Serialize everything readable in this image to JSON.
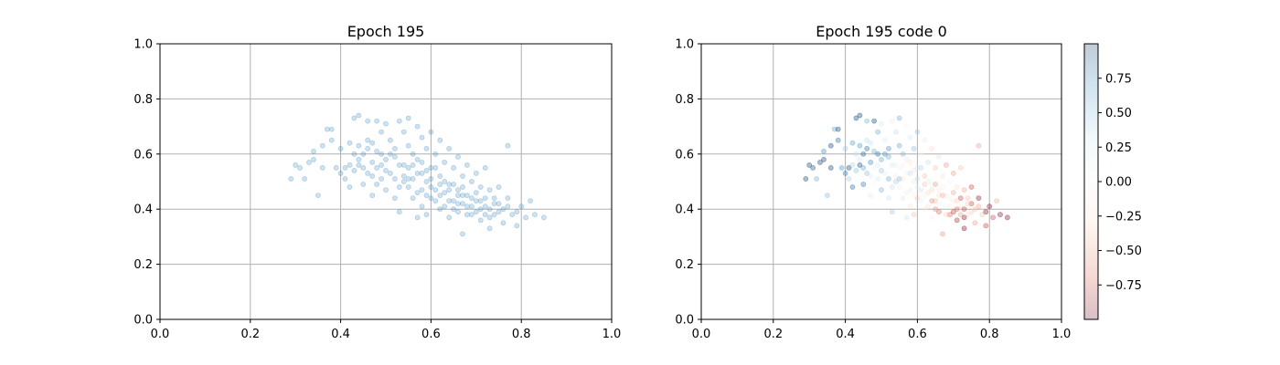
{
  "chart_data": [
    {
      "type": "scatter",
      "title": "Epoch 195",
      "xlim": [
        0.0,
        1.0
      ],
      "ylim": [
        0.0,
        1.0
      ],
      "xticks": [
        "0.0",
        "0.2",
        "0.4",
        "0.6",
        "0.8",
        "1.0"
      ],
      "yticks": [
        "0.0",
        "0.2",
        "0.4",
        "0.6",
        "0.8",
        "1.0"
      ],
      "grid": true,
      "point_color": "#1f77b4",
      "point_alpha": 0.22,
      "points": [
        [
          0.29,
          0.51
        ],
        [
          0.3,
          0.56
        ],
        [
          0.31,
          0.55
        ],
        [
          0.32,
          0.51
        ],
        [
          0.33,
          0.57
        ],
        [
          0.34,
          0.58
        ],
        [
          0.34,
          0.61
        ],
        [
          0.35,
          0.45
        ],
        [
          0.36,
          0.55
        ],
        [
          0.36,
          0.63
        ],
        [
          0.37,
          0.69
        ],
        [
          0.38,
          0.65
        ],
        [
          0.38,
          0.69
        ],
        [
          0.39,
          0.55
        ],
        [
          0.4,
          0.62
        ],
        [
          0.4,
          0.53
        ],
        [
          0.41,
          0.55
        ],
        [
          0.41,
          0.51
        ],
        [
          0.42,
          0.56
        ],
        [
          0.42,
          0.48
        ],
        [
          0.43,
          0.73
        ],
        [
          0.43,
          0.6
        ],
        [
          0.43,
          0.54
        ],
        [
          0.44,
          0.74
        ],
        [
          0.44,
          0.63
        ],
        [
          0.44,
          0.58
        ],
        [
          0.45,
          0.55
        ],
        [
          0.45,
          0.49
        ],
        [
          0.46,
          0.72
        ],
        [
          0.46,
          0.65
        ],
        [
          0.46,
          0.62
        ],
        [
          0.47,
          0.57
        ],
        [
          0.47,
          0.52
        ],
        [
          0.47,
          0.45
        ],
        [
          0.48,
          0.72
        ],
        [
          0.48,
          0.61
        ],
        [
          0.48,
          0.55
        ],
        [
          0.49,
          0.68
        ],
        [
          0.49,
          0.6
        ],
        [
          0.49,
          0.51
        ],
        [
          0.5,
          0.71
        ],
        [
          0.5,
          0.58
        ],
        [
          0.5,
          0.47
        ],
        [
          0.51,
          0.65
        ],
        [
          0.51,
          0.53
        ],
        [
          0.52,
          0.62
        ],
        [
          0.52,
          0.44
        ],
        [
          0.53,
          0.72
        ],
        [
          0.53,
          0.56
        ],
        [
          0.53,
          0.39
        ],
        [
          0.54,
          0.68
        ],
        [
          0.54,
          0.52
        ],
        [
          0.55,
          0.73
        ],
        [
          0.55,
          0.63
        ],
        [
          0.55,
          0.55
        ],
        [
          0.55,
          0.48
        ],
        [
          0.56,
          0.6
        ],
        [
          0.56,
          0.44
        ],
        [
          0.57,
          0.7
        ],
        [
          0.57,
          0.53
        ],
        [
          0.57,
          0.37
        ],
        [
          0.58,
          0.66
        ],
        [
          0.58,
          0.57
        ],
        [
          0.58,
          0.47
        ],
        [
          0.59,
          0.62
        ],
        [
          0.59,
          0.5
        ],
        [
          0.59,
          0.38
        ],
        [
          0.6,
          0.68
        ],
        [
          0.6,
          0.55
        ],
        [
          0.6,
          0.44
        ],
        [
          0.61,
          0.6
        ],
        [
          0.61,
          0.47
        ],
        [
          0.62,
          0.65
        ],
        [
          0.62,
          0.52
        ],
        [
          0.62,
          0.4
        ],
        [
          0.63,
          0.57
        ],
        [
          0.63,
          0.46
        ],
        [
          0.64,
          0.62
        ],
        [
          0.64,
          0.49
        ],
        [
          0.64,
          0.37
        ],
        [
          0.65,
          0.55
        ],
        [
          0.65,
          0.43
        ],
        [
          0.66,
          0.59
        ],
        [
          0.66,
          0.47
        ],
        [
          0.66,
          0.39
        ],
        [
          0.67,
          0.52
        ],
        [
          0.67,
          0.42
        ],
        [
          0.67,
          0.31
        ],
        [
          0.68,
          0.56
        ],
        [
          0.68,
          0.45
        ],
        [
          0.69,
          0.5
        ],
        [
          0.69,
          0.38
        ],
        [
          0.7,
          0.53
        ],
        [
          0.7,
          0.43
        ],
        [
          0.71,
          0.48
        ],
        [
          0.71,
          0.36
        ],
        [
          0.72,
          0.55
        ],
        [
          0.72,
          0.41
        ],
        [
          0.73,
          0.47
        ],
        [
          0.73,
          0.33
        ],
        [
          0.74,
          0.44
        ],
        [
          0.74,
          0.38
        ],
        [
          0.75,
          0.42
        ],
        [
          0.75,
          0.48
        ],
        [
          0.76,
          0.4
        ],
        [
          0.76,
          0.35
        ],
        [
          0.77,
          0.44
        ],
        [
          0.77,
          0.63
        ],
        [
          0.78,
          0.38
        ],
        [
          0.79,
          0.34
        ],
        [
          0.8,
          0.41
        ],
        [
          0.81,
          0.37
        ],
        [
          0.82,
          0.43
        ],
        [
          0.83,
          0.38
        ],
        [
          0.85,
          0.37
        ],
        [
          0.52,
          0.59
        ],
        [
          0.54,
          0.5
        ],
        [
          0.56,
          0.56
        ],
        [
          0.58,
          0.41
        ],
        [
          0.6,
          0.51
        ],
        [
          0.62,
          0.45
        ],
        [
          0.64,
          0.43
        ],
        [
          0.66,
          0.45
        ],
        [
          0.68,
          0.41
        ],
        [
          0.7,
          0.46
        ],
        [
          0.72,
          0.44
        ],
        [
          0.74,
          0.42
        ],
        [
          0.45,
          0.6
        ],
        [
          0.47,
          0.64
        ],
        [
          0.49,
          0.56
        ],
        [
          0.51,
          0.6
        ],
        [
          0.53,
          0.48
        ],
        [
          0.57,
          0.58
        ],
        [
          0.59,
          0.45
        ],
        [
          0.61,
          0.55
        ],
        [
          0.63,
          0.41
        ],
        [
          0.65,
          0.49
        ],
        [
          0.67,
          0.48
        ],
        [
          0.69,
          0.44
        ],
        [
          0.71,
          0.4
        ],
        [
          0.73,
          0.4
        ],
        [
          0.75,
          0.39
        ],
        [
          0.77,
          0.41
        ],
        [
          0.79,
          0.39
        ],
        [
          0.42,
          0.64
        ],
        [
          0.44,
          0.56
        ],
        [
          0.46,
          0.53
        ],
        [
          0.48,
          0.49
        ],
        [
          0.5,
          0.54
        ],
        [
          0.52,
          0.51
        ],
        [
          0.54,
          0.56
        ],
        [
          0.56,
          0.51
        ],
        [
          0.58,
          0.53
        ],
        [
          0.6,
          0.48
        ],
        [
          0.62,
          0.49
        ],
        [
          0.64,
          0.47
        ],
        [
          0.66,
          0.42
        ],
        [
          0.68,
          0.38
        ],
        [
          0.7,
          0.39
        ],
        [
          0.72,
          0.38
        ],
        [
          0.55,
          0.51
        ],
        [
          0.57,
          0.46
        ],
        [
          0.59,
          0.54
        ],
        [
          0.61,
          0.43
        ],
        [
          0.63,
          0.5
        ],
        [
          0.65,
          0.4
        ],
        [
          0.67,
          0.45
        ],
        [
          0.69,
          0.41
        ],
        [
          0.71,
          0.43
        ],
        [
          0.73,
          0.37
        ]
      ]
    },
    {
      "type": "scatter",
      "title": "Epoch 195 code 0",
      "xlim": [
        0.0,
        1.0
      ],
      "ylim": [
        0.0,
        1.0
      ],
      "xticks": [
        "0.0",
        "0.2",
        "0.4",
        "0.6",
        "0.8",
        "1.0"
      ],
      "yticks": [
        "0.0",
        "0.2",
        "0.4",
        "0.6",
        "0.8",
        "1.0"
      ],
      "grid": true,
      "colormap": "RdBu",
      "point_alpha": 0.25,
      "colorbar": {
        "range": [
          -1.0,
          1.0
        ],
        "ticks": [
          0.75,
          0.5,
          0.25,
          0.0,
          -0.25,
          -0.5,
          -0.75
        ],
        "tick_labels": [
          "0.75",
          "0.50",
          "0.25",
          "0.00",
          "−0.25",
          "−0.50",
          "−0.75"
        ]
      }
    }
  ]
}
